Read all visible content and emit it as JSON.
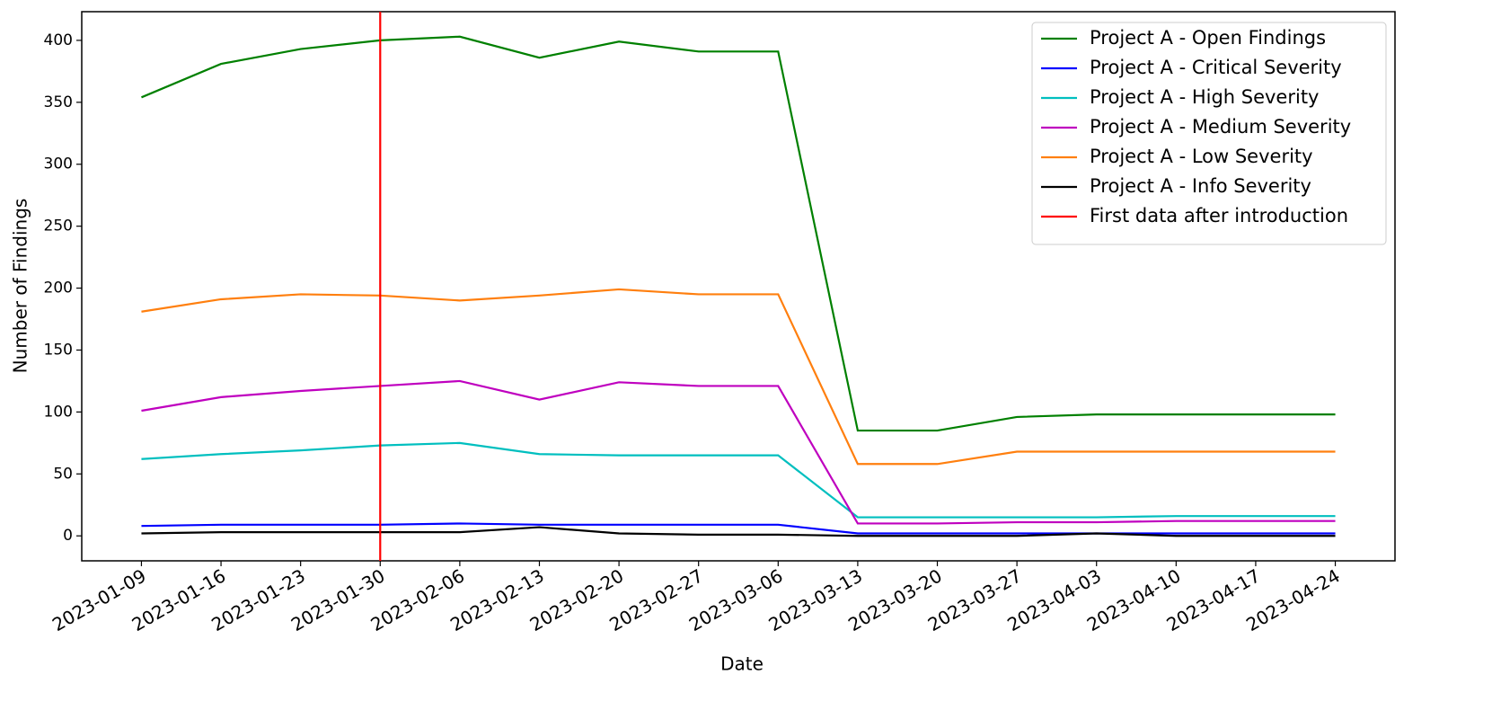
{
  "chart_data": {
    "type": "line",
    "x": [
      "2023-01-09",
      "2023-01-16",
      "2023-01-23",
      "2023-01-30",
      "2023-02-06",
      "2023-02-13",
      "2023-02-20",
      "2023-02-27",
      "2023-03-06",
      "2023-03-13",
      "2023-03-20",
      "2023-03-27",
      "2023-04-03",
      "2023-04-10",
      "2023-04-17",
      "2023-04-24"
    ],
    "xlabel": "Date",
    "ylabel": "Number of Findings",
    "ylim": [
      -20.15,
      423.15
    ],
    "yticks": [
      0,
      50,
      100,
      150,
      200,
      250,
      300,
      350,
      400
    ],
    "legend": "upper right",
    "series": [
      {
        "name": "Project A - Open Findings",
        "color": "#008000",
        "values": [
          354,
          381,
          393,
          400,
          403,
          386,
          399,
          391,
          391,
          85,
          85,
          96,
          98,
          98,
          98,
          98
        ]
      },
      {
        "name": "Project A - Critical Severity",
        "color": "#0000ff",
        "values": [
          8,
          9,
          9,
          9,
          10,
          9,
          9,
          9,
          9,
          2,
          2,
          2,
          2,
          2,
          2,
          2
        ]
      },
      {
        "name": "Project A - High Severity",
        "color": "#00bfbf",
        "values": [
          62,
          66,
          69,
          73,
          75,
          66,
          65,
          65,
          65,
          15,
          15,
          15,
          15,
          16,
          16,
          16
        ]
      },
      {
        "name": "Project A - Medium Severity",
        "color": "#bf00bf",
        "values": [
          101,
          112,
          117,
          121,
          125,
          110,
          124,
          121,
          121,
          10,
          10,
          11,
          11,
          12,
          12,
          12
        ]
      },
      {
        "name": "Project A - Low Severity",
        "color": "#ff7f0e",
        "values": [
          181,
          191,
          195,
          194,
          190,
          194,
          199,
          195,
          195,
          58,
          58,
          68,
          68,
          68,
          68,
          68
        ]
      },
      {
        "name": "Project A - Info Severity",
        "color": "#000000",
        "values": [
          2,
          3,
          3,
          3,
          3,
          7,
          2,
          1,
          1,
          0,
          0,
          0,
          2,
          0,
          0,
          0
        ]
      }
    ],
    "vline": {
      "x": "2023-01-30",
      "name": "First data after introduction",
      "color": "#ff0000"
    }
  }
}
